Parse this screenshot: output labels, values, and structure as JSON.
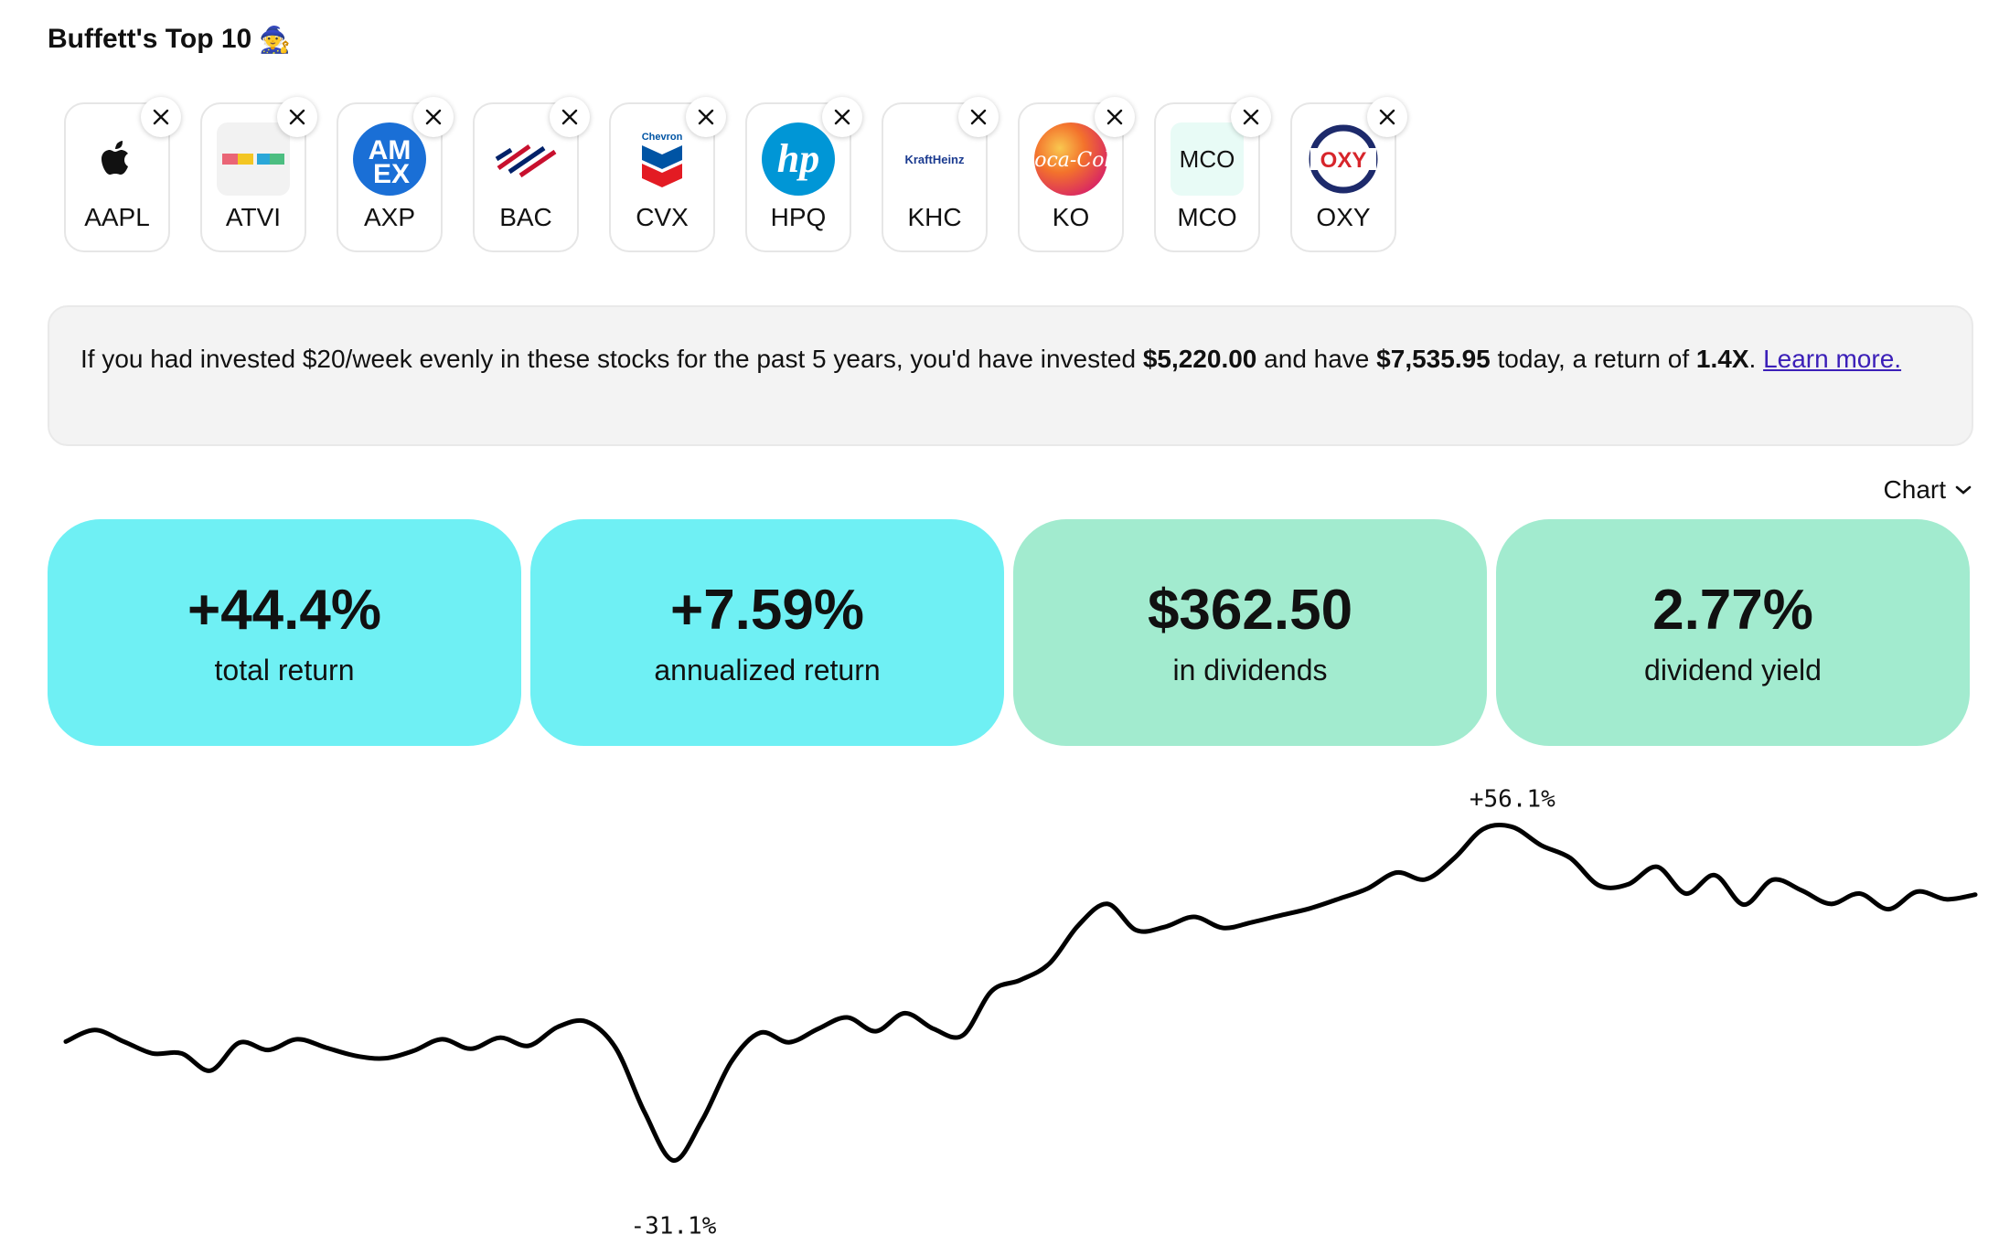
{
  "header": {
    "title": "Buffett's Top 10",
    "title_emoji": "🧙"
  },
  "tickers": [
    {
      "symbol": "AAPL",
      "logo": "apple-logo"
    },
    {
      "symbol": "ATVI",
      "logo": "activision-blizzard-logo"
    },
    {
      "symbol": "AXP",
      "logo": "amex-logo",
      "logo_text_1": "AM",
      "logo_text_2": "EX",
      "color": "#1a6fd6"
    },
    {
      "symbol": "BAC",
      "logo": "bank-of-america-logo",
      "color": "#c8102e"
    },
    {
      "symbol": "CVX",
      "logo": "chevron-logo",
      "logo_text": "Chevron",
      "color": "#0054a4"
    },
    {
      "symbol": "HPQ",
      "logo": "hp-logo",
      "logo_text": "hp",
      "color": "#0096d6"
    },
    {
      "symbol": "KHC",
      "logo": "kraft-heinz-logo",
      "logo_text": "KraftHeinz",
      "color": "#1a3a8f"
    },
    {
      "symbol": "KO",
      "logo": "coca-cola-logo",
      "logo_text": "Coca-Cola",
      "color": "#e31b23"
    },
    {
      "symbol": "MCO",
      "logo": "moodys-logo",
      "logo_text": "MCO",
      "color": "#e8fbf6"
    },
    {
      "symbol": "OXY",
      "logo": "oxy-logo",
      "logo_text": "OXY",
      "color": "#d7252b"
    }
  ],
  "banner": {
    "text_1": "If you had invested $20/week evenly in these stocks for the past 5 years, you'd have invested ",
    "invested": "$5,220.00",
    "text_2": " and have ",
    "value_today": "$7,535.95",
    "text_3": " today, a return of ",
    "multiple": "1.4X",
    "text_4": ". ",
    "learn_more": "Learn more."
  },
  "view_selector": {
    "label": "Chart",
    "icon": "chevron-down-icon"
  },
  "stats": [
    {
      "value": "+44.4%",
      "label": "total return",
      "color": "#6ff0f4"
    },
    {
      "value": "+7.59%",
      "label": "annualized return",
      "color": "#6ff0f4"
    },
    {
      "value": "$362.50",
      "label": "in dividends",
      "color": "#a2ebcf"
    },
    {
      "value": "2.77%",
      "label": "dividend yield",
      "color": "#a2ebcf"
    }
  ],
  "chart_data": {
    "type": "line",
    "series": [
      {
        "values": [
          0.0,
          3.0,
          0.0,
          -3.1,
          -3.1,
          -7.6,
          -0.3,
          -2.2,
          0.6,
          -1.6,
          -3.7,
          -4.4,
          -2.5,
          0.6,
          -1.9,
          1.0,
          -1.1,
          3.8,
          5.2,
          -1.6,
          -18.4,
          -31.1,
          -20.5,
          -5.3,
          2.3,
          -0.2,
          3.3,
          6.3,
          2.7,
          7.4,
          3.3,
          1.6,
          13.2,
          16.1,
          20.4,
          30.4,
          36.0,
          29.1,
          30.0,
          32.6,
          29.7,
          31.2,
          33.0,
          34.8,
          37.3,
          40.0,
          44.2,
          42.4,
          48.0,
          55.6,
          56.1,
          51.3,
          48.0,
          40.8,
          41.1,
          45.7,
          38.7,
          43.5,
          35.8,
          42.3,
          39.5,
          36.0,
          38.7,
          34.6,
          39.2,
          37.2,
          38.4
        ]
      }
    ],
    "annotations": [
      {
        "text": "+56.1%",
        "at": "max",
        "value": 56.1
      },
      {
        "text": "-31.1%",
        "at": "min",
        "value": -31.1
      }
    ],
    "ylim": [
      -36,
      62
    ]
  }
}
